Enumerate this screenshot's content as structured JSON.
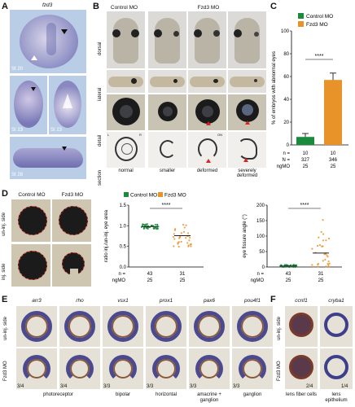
{
  "panelA": {
    "label": "A",
    "gene": "fzd3",
    "stages": [
      "St 20",
      "St 23",
      "St 23",
      "St 28"
    ]
  },
  "panelB": {
    "label": "B",
    "headers": [
      "Control MO",
      "Fzd3 MO"
    ],
    "row_labels": [
      "dorsal",
      "lateral",
      "detail",
      "section"
    ],
    "categories": [
      "normal",
      "smaller",
      "deformed",
      "severely deformed"
    ],
    "section_marks": [
      "L",
      "R",
      "ON"
    ]
  },
  "panelC": {
    "label": "C",
    "legend": [
      "Control MO",
      "Fzd3 MO"
    ],
    "chart_data": {
      "type": "bar",
      "categories": [
        "Control MO",
        "Fzd3 MO"
      ],
      "series": [
        {
          "name": "",
          "values": [
            7,
            57
          ]
        }
      ],
      "errors": [
        3,
        6
      ],
      "ylabel": "% of embryos with abnormal eyes",
      "ylim": [
        0,
        100
      ],
      "yticks": [
        "0",
        "20",
        "40",
        "60",
        "80",
        "100"
      ],
      "significance": "****",
      "table": {
        "n_label": "n =",
        "N_label": "N =",
        "ngMO_label": "ngMO",
        "n": [
          "10",
          "10"
        ],
        "N": [
          "327",
          "346"
        ],
        "ngMO": [
          "25",
          "25"
        ]
      }
    },
    "colors": {
      "control": "#1a8a3c",
      "fzd3": "#e8922a"
    }
  },
  "panelD": {
    "label": "D",
    "headers": [
      "Control MO",
      "Fzd3 MO"
    ],
    "row_labels": [
      "un-inj. side",
      "inj. side"
    ],
    "legend": [
      "Control MO",
      "Fzd3 MO"
    ],
    "chart_ratio": {
      "type": "scatter",
      "ylabel": "ratio inj./un-inj. eye area",
      "ylim": [
        0,
        1.5
      ],
      "yticks": [
        "0.0",
        "0.5",
        "1.0",
        "1.5"
      ],
      "means": [
        0.98,
        0.76
      ],
      "significance": "****",
      "n_label": "n =",
      "ngMO_label": "ngMO",
      "n": [
        "43",
        "31"
      ],
      "ngMO": [
        "25",
        "25"
      ]
    },
    "chart_angle": {
      "type": "scatter",
      "ylabel": "eye fissure angle (°)",
      "ylim": [
        0,
        200
      ],
      "yticks": [
        "0",
        "50",
        "100",
        "150",
        "200"
      ],
      "means": [
        3,
        45
      ],
      "significance": "****",
      "n_label": "n =",
      "ngMO_label": "ngMO",
      "n": [
        "43",
        "31"
      ],
      "ngMO": [
        "25",
        "25"
      ]
    }
  },
  "panelE": {
    "label": "E",
    "genes": [
      "arr3",
      "rho",
      "vsx1",
      "prox1",
      "pax6",
      "pou4f1"
    ],
    "row_labels": [
      "un-inj. side",
      "Fzd3 MO"
    ],
    "fractions": [
      "3/4",
      "3/4",
      "3/3",
      "3/3",
      "3/3",
      "3/3"
    ],
    "cell_types": [
      "photoreceptor",
      "bipolar",
      "horizontal",
      "amacrine + ganglion",
      "ganglion"
    ]
  },
  "panelF": {
    "label": "F",
    "genes": [
      "ccnf1",
      "cryba1"
    ],
    "row_labels": [
      "un-inj. side",
      "Fzd3 MO"
    ],
    "fractions": [
      "2/4",
      "1/4"
    ],
    "captions": [
      "lens fiber cells",
      "lens epithelium"
    ]
  }
}
